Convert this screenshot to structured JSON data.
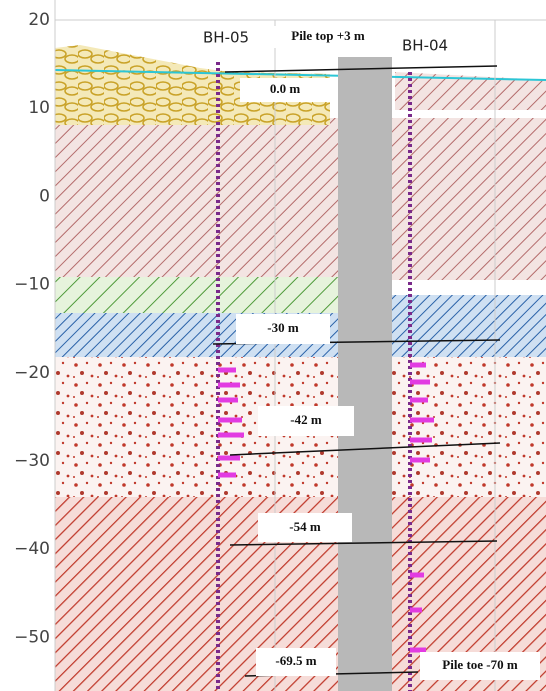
{
  "axis": {
    "ticks": [
      "20",
      "10",
      "0",
      "−10",
      "−20",
      "−30",
      "−40",
      "−50"
    ]
  },
  "boreholes": [
    {
      "label": "BH-05"
    },
    {
      "label": "BH-04"
    }
  ],
  "annotations": {
    "pile_top": "Pile top +3 m",
    "level_1": "0.0 m",
    "level_2": "-30 m",
    "level_3": "-42 m",
    "level_4": "-54 m",
    "level_5": "-69.5 m",
    "pile_toe": "Pile toe -70 m"
  }
}
